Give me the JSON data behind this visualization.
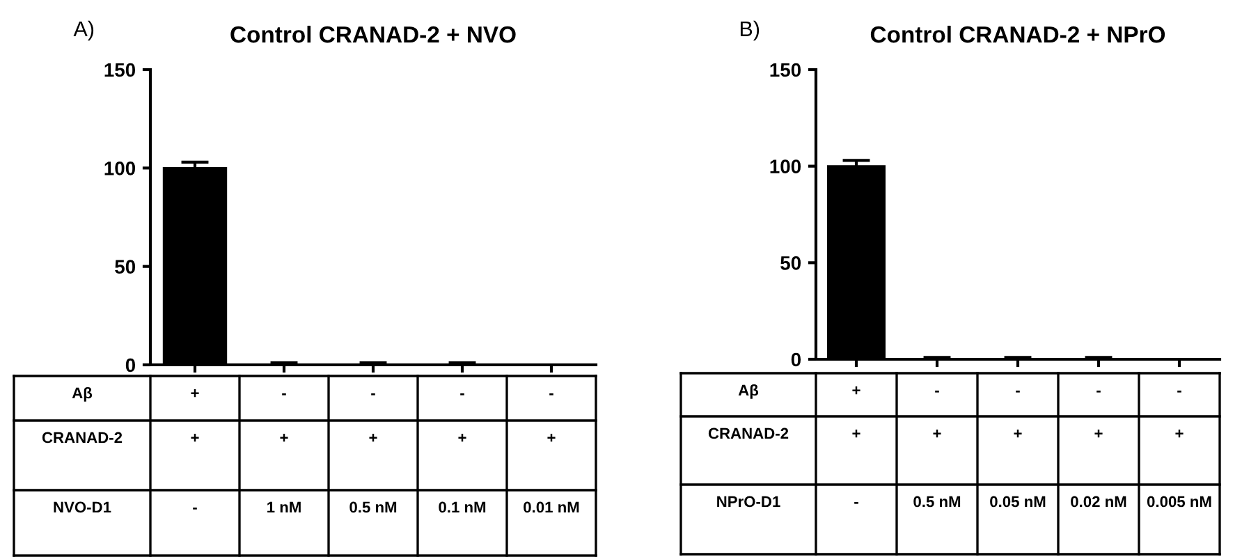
{
  "chart_data": [
    {
      "type": "bar",
      "title": "Control CRANAD-2 + NVO",
      "categories": [
        "+\n+\n-",
        "-\n+\n1 nM",
        "-\n+\n0.5 nM",
        "-\n+\n0.1 nM",
        "-\n+\n0.01 nM"
      ],
      "values": [
        100,
        0,
        0,
        0,
        0
      ],
      "errors": [
        3,
        1,
        1,
        1,
        null
      ],
      "color": "#000000",
      "ylim": [
        0,
        150
      ],
      "yticks": [
        0,
        50,
        100,
        150
      ],
      "grid": false,
      "annotations": [
        "A)",
        "Aβ",
        "CRANAD-2",
        "NVO-D1"
      ]
    },
    {
      "type": "bar",
      "title": "Control CRANAD-2 + NPrO",
      "categories": [
        "+\n+\n-",
        "-\n+\n0.5 nM",
        "-\n+\n0.05 nM",
        "-\n+\n0.02 nM",
        "-\n+\n0.005 nM"
      ],
      "values": [
        100,
        0,
        0,
        0,
        0
      ],
      "errors": [
        3,
        1,
        1,
        1,
        null
      ],
      "color": "#000000",
      "ylim": [
        0,
        150
      ],
      "yticks": [
        0,
        50,
        100,
        150
      ],
      "grid": false,
      "annotations": [
        "B)",
        "Aβ",
        "CRANAD-2",
        "NPrO-D1"
      ]
    }
  ]
}
